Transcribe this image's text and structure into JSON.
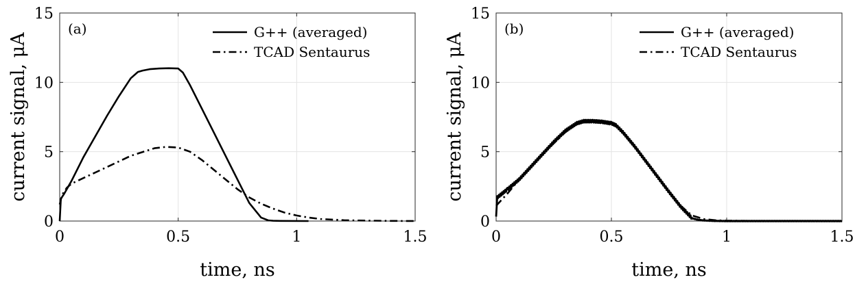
{
  "chart_data": [
    {
      "type": "line",
      "panel_label": "(a)",
      "xlabel": "time, ns",
      "ylabel": "current signal, μA",
      "xlim": [
        0,
        1.5
      ],
      "ylim": [
        0,
        15
      ],
      "xticks": [
        "0",
        "0.5",
        "1",
        "1.5"
      ],
      "xtick_values": [
        0,
        0.5,
        1,
        1.5
      ],
      "yticks": [
        "0",
        "5",
        "10",
        "15"
      ],
      "ytick_values": [
        0,
        5,
        10,
        15
      ],
      "grid": true,
      "legend_position": "top-right",
      "series": [
        {
          "name": "G++ (averaged)",
          "style": "solid",
          "x": [
            0,
            0.005,
            0.02,
            0.05,
            0.1,
            0.15,
            0.2,
            0.25,
            0.3,
            0.33,
            0.35,
            0.38,
            0.42,
            0.46,
            0.5,
            0.52,
            0.55,
            0.6,
            0.65,
            0.7,
            0.75,
            0.8,
            0.85,
            0.88,
            0.9,
            0.93,
            1.05
          ],
          "y": [
            0,
            1.6,
            2.0,
            2.9,
            4.6,
            6.1,
            7.6,
            9.0,
            10.3,
            10.75,
            10.85,
            10.95,
            11.0,
            11.02,
            11.0,
            10.7,
            9.8,
            8.1,
            6.4,
            4.7,
            3.0,
            1.3,
            0.25,
            0.05,
            0.02,
            0.01,
            0.0
          ]
        },
        {
          "name": "TCAD Sentaurus",
          "style": "dashdot",
          "x": [
            0,
            0.01,
            0.03,
            0.05,
            0.1,
            0.2,
            0.3,
            0.4,
            0.45,
            0.5,
            0.55,
            0.6,
            0.65,
            0.7,
            0.75,
            0.8,
            0.85,
            0.9,
            0.95,
            1.0,
            1.05,
            1.1,
            1.2,
            1.3,
            1.4,
            1.5
          ],
          "y": [
            1.2,
            1.9,
            2.4,
            2.7,
            3.1,
            3.9,
            4.7,
            5.25,
            5.35,
            5.3,
            5.0,
            4.4,
            3.7,
            3.0,
            2.3,
            1.7,
            1.25,
            0.9,
            0.6,
            0.4,
            0.25,
            0.15,
            0.06,
            0.03,
            0.01,
            0.0
          ]
        }
      ]
    },
    {
      "type": "line",
      "panel_label": "(b)",
      "xlabel": "time, ns",
      "ylabel": "current signal, μA",
      "xlim": [
        0,
        1.5
      ],
      "ylim": [
        0,
        15
      ],
      "xticks": [
        "0",
        "0.5",
        "1",
        "1.5"
      ],
      "xtick_values": [
        0,
        0.5,
        1,
        1.5
      ],
      "yticks": [
        "0",
        "5",
        "10",
        "15"
      ],
      "ytick_values": [
        0,
        5,
        10,
        15
      ],
      "grid": true,
      "legend_position": "top-right",
      "series": [
        {
          "name": "G++ (averaged)",
          "style": "solid",
          "noisy": true,
          "x": [
            0,
            0.005,
            0.05,
            0.1,
            0.15,
            0.2,
            0.25,
            0.3,
            0.35,
            0.38,
            0.42,
            0.46,
            0.5,
            0.52,
            0.55,
            0.6,
            0.65,
            0.7,
            0.75,
            0.8,
            0.85,
            0.88,
            0.9,
            0.93,
            0.95,
            1.0,
            1.2,
            1.5
          ],
          "y": [
            0.3,
            1.7,
            2.3,
            3.0,
            3.9,
            4.8,
            5.7,
            6.5,
            7.05,
            7.2,
            7.2,
            7.15,
            7.05,
            6.9,
            6.4,
            5.4,
            4.3,
            3.2,
            2.1,
            1.05,
            0.2,
            0.08,
            0.04,
            0.02,
            0.01,
            0.0,
            0.0,
            0.0
          ]
        },
        {
          "name": "TCAD Sentaurus",
          "style": "dashdot",
          "x": [
            0,
            0.05,
            0.1,
            0.15,
            0.2,
            0.25,
            0.3,
            0.35,
            0.4,
            0.45,
            0.5,
            0.52,
            0.55,
            0.6,
            0.65,
            0.7,
            0.75,
            0.8,
            0.85,
            0.9,
            0.95,
            1.0,
            1.1,
            1.2,
            1.3,
            1.5
          ],
          "y": [
            1.1,
            2.0,
            3.0,
            3.9,
            4.8,
            5.6,
            6.4,
            7.0,
            7.15,
            7.1,
            7.0,
            6.85,
            6.35,
            5.35,
            4.3,
            3.2,
            2.1,
            1.1,
            0.4,
            0.15,
            0.06,
            0.03,
            0.01,
            0.0,
            0.0,
            0.0
          ]
        }
      ]
    }
  ]
}
